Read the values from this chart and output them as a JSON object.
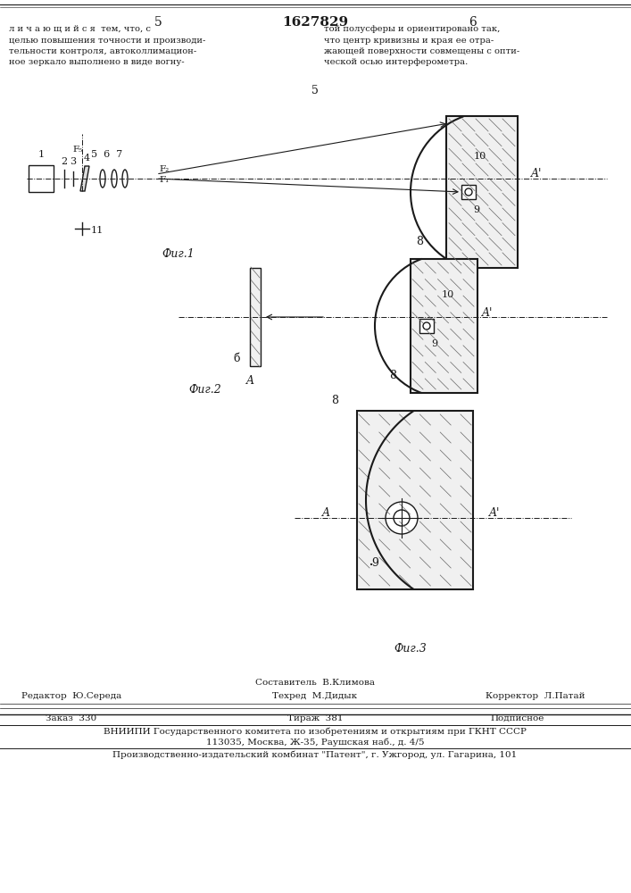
{
  "bg_color": "#ffffff",
  "page_number_left": "5",
  "page_number_center": "1627829",
  "page_number_right": "6",
  "text_top_left": "л и ч а ю щ и й с я  тем, что, с\nцелью повышения точности и производи-\nтельности контроля, автоколлимацион-\nное зеркало выполнено в виде вогну-",
  "text_top_right": "той полусферы и ориентировано так,\nчто центр кривизны и края ее отра-\nжающей поверхности совмещены с опти-\nческой осью интерферометра.",
  "fig1_label": "Фиг.1",
  "fig2_label": "Фиг.2",
  "fig3_label": "Фиг.3",
  "footer_line1": "Составитель  В.Климова",
  "footer_line2_left": "Редактор  Ю.Середа",
  "footer_line2_center": "Техред  М.Дидык",
  "footer_line2_right": "Корректор  Л.Патай",
  "footer_line3_left": "Заказ  330",
  "footer_line3_center": "Тираж  381",
  "footer_line3_right": "Подписное",
  "footer_line4": "ВНИИПИ Государственного комитета по изобретениям и открытиям при ГКНТ СССР",
  "footer_line5": "113035, Москва, Ж-35, Раушская наб., д. 4/5",
  "footer_line6": "Производственно-издательский комбинат \"Патент\", г. Ужгород, ул. Гагарина, 101"
}
